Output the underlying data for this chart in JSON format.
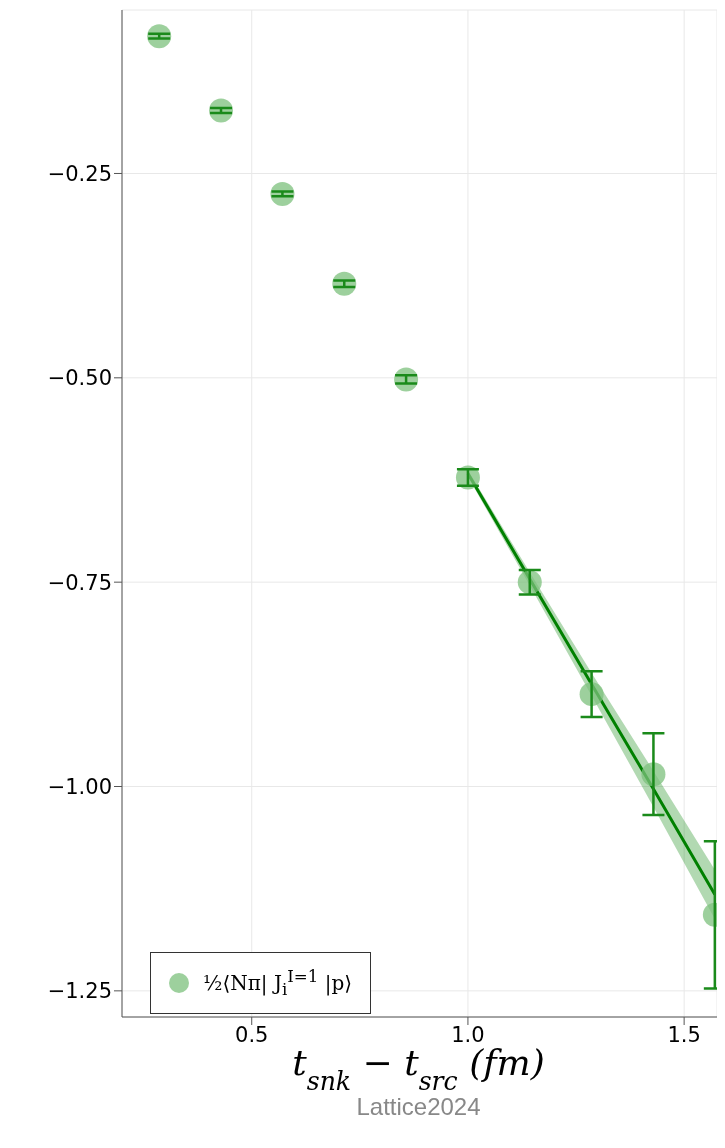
{
  "chart_data": {
    "type": "scatter",
    "xlabel": "t$_{snk}$ − t$_{src}$(fm)",
    "annotations": [
      "Lattice2024"
    ],
    "xlim": [
      0.2,
      1.576
    ],
    "ylim": [
      -1.282,
      -0.05
    ],
    "xticks": [
      0.5,
      {
        "value": 1,
        "label": "1.0"
      },
      1.5
    ],
    "yticks": [
      {
        "value": -0.25,
        "label": "−0.25"
      },
      {
        "value": -0.5,
        "label": "−0.50"
      },
      {
        "value": -0.75,
        "label": "−0.75"
      },
      {
        "value": -1,
        "label": "−1.00"
      },
      {
        "value": -1.25,
        "label": "−1.25"
      }
    ],
    "grid": true,
    "legend": "bottom left",
    "marker": "circle",
    "series": [
      {
        "name": "½⟨Nπ| J$_{i}$$^{I=1}$ |p⟩",
        "color": "#7cc07c",
        "x": [
          0.286,
          0.429,
          0.571,
          0.714,
          0.857,
          1.0,
          1.143,
          1.286,
          1.429,
          1.571
        ],
        "values": [
          -0.082,
          -0.173,
          -0.275,
          -0.385,
          -0.502,
          -0.622,
          -0.75,
          -0.887,
          -0.985,
          -1.157
        ],
        "errors": [
          0.003,
          0.003,
          0.003,
          0.004,
          0.005,
          0.01,
          0.015,
          0.028,
          0.05,
          0.09
        ]
      },
      {
        "type": "line",
        "color": "#008000",
        "x": [
          1.0,
          1.143,
          1.286,
          1.429,
          1.571
        ],
        "values": [
          -0.617,
          -0.746,
          -0.875,
          -1.003,
          -1.132
        ],
        "lower": [
          -0.621,
          -0.754,
          -0.889,
          -1.025,
          -1.162
        ],
        "upper": [
          -0.613,
          -0.738,
          -0.861,
          -0.981,
          -1.102
        ],
        "line_style": "solid",
        "marker": "none"
      }
    ]
  }
}
